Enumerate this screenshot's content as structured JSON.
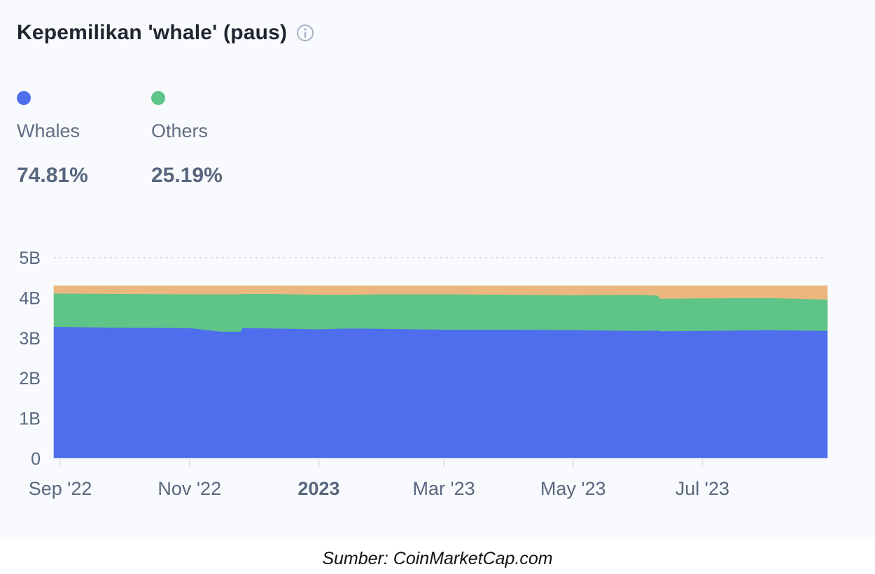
{
  "header": {
    "title": "Kepemilikan 'whale' (paus)",
    "info_icon": "info-circle-icon"
  },
  "legend": [
    {
      "label": "Whales",
      "value": "74.81%",
      "color": "#4f6eed"
    },
    {
      "label": "Others",
      "value": "25.19%",
      "color": "#5ec487"
    }
  ],
  "caption": "Sumber: CoinMarketCap.com",
  "chart_data": {
    "type": "area",
    "stacked": true,
    "y_ticks": [
      "0",
      "1B",
      "2B",
      "3B",
      "4B",
      "5B"
    ],
    "ylim": [
      0,
      5
    ],
    "y_unit": "B",
    "grid": "dotted line at top only",
    "x_ticks": [
      {
        "label": "Sep '22",
        "date": "2022-09-01",
        "bold": false
      },
      {
        "label": "Nov '22",
        "date": "2022-11-01",
        "bold": false
      },
      {
        "label": "2023",
        "date": "2023-01-01",
        "bold": true
      },
      {
        "label": "Mar '23",
        "date": "2023-03-01",
        "bold": false
      },
      {
        "label": "May '23",
        "date": "2023-05-01",
        "bold": false
      },
      {
        "label": "Jul '23",
        "date": "2023-07-01",
        "bold": false
      }
    ],
    "x_range": [
      "2022-08-29",
      "2023-08-29"
    ],
    "x": [
      "2022-08-29",
      "2022-10-01",
      "2022-11-01",
      "2022-11-16",
      "2022-11-25",
      "2022-11-26",
      "2022-12-10",
      "2023-01-01",
      "2023-01-15",
      "2023-02-01",
      "2023-03-01",
      "2023-04-01",
      "2023-05-01",
      "2023-06-01",
      "2023-06-10",
      "2023-06-11",
      "2023-07-01",
      "2023-08-01",
      "2023-08-29"
    ],
    "series": [
      {
        "name": "Whales",
        "color": "#4f6eed",
        "values": [
          3.28,
          3.26,
          3.25,
          3.16,
          3.16,
          3.25,
          3.24,
          3.22,
          3.24,
          3.23,
          3.21,
          3.21,
          3.2,
          3.18,
          3.19,
          3.17,
          3.18,
          3.2,
          3.18
        ]
      },
      {
        "name": "Others",
        "color": "#5ec487",
        "values": [
          0.83,
          0.84,
          0.84,
          0.93,
          0.93,
          0.85,
          0.86,
          0.86,
          0.84,
          0.86,
          0.88,
          0.87,
          0.87,
          0.9,
          0.87,
          0.81,
          0.81,
          0.8,
          0.78
        ]
      },
      {
        "name": "",
        "color": "#ebb77f",
        "values": [
          0.19,
          0.2,
          0.21,
          0.21,
          0.21,
          0.2,
          0.2,
          0.22,
          0.22,
          0.21,
          0.21,
          0.22,
          0.23,
          0.22,
          0.24,
          0.32,
          0.31,
          0.3,
          0.34
        ]
      }
    ]
  }
}
